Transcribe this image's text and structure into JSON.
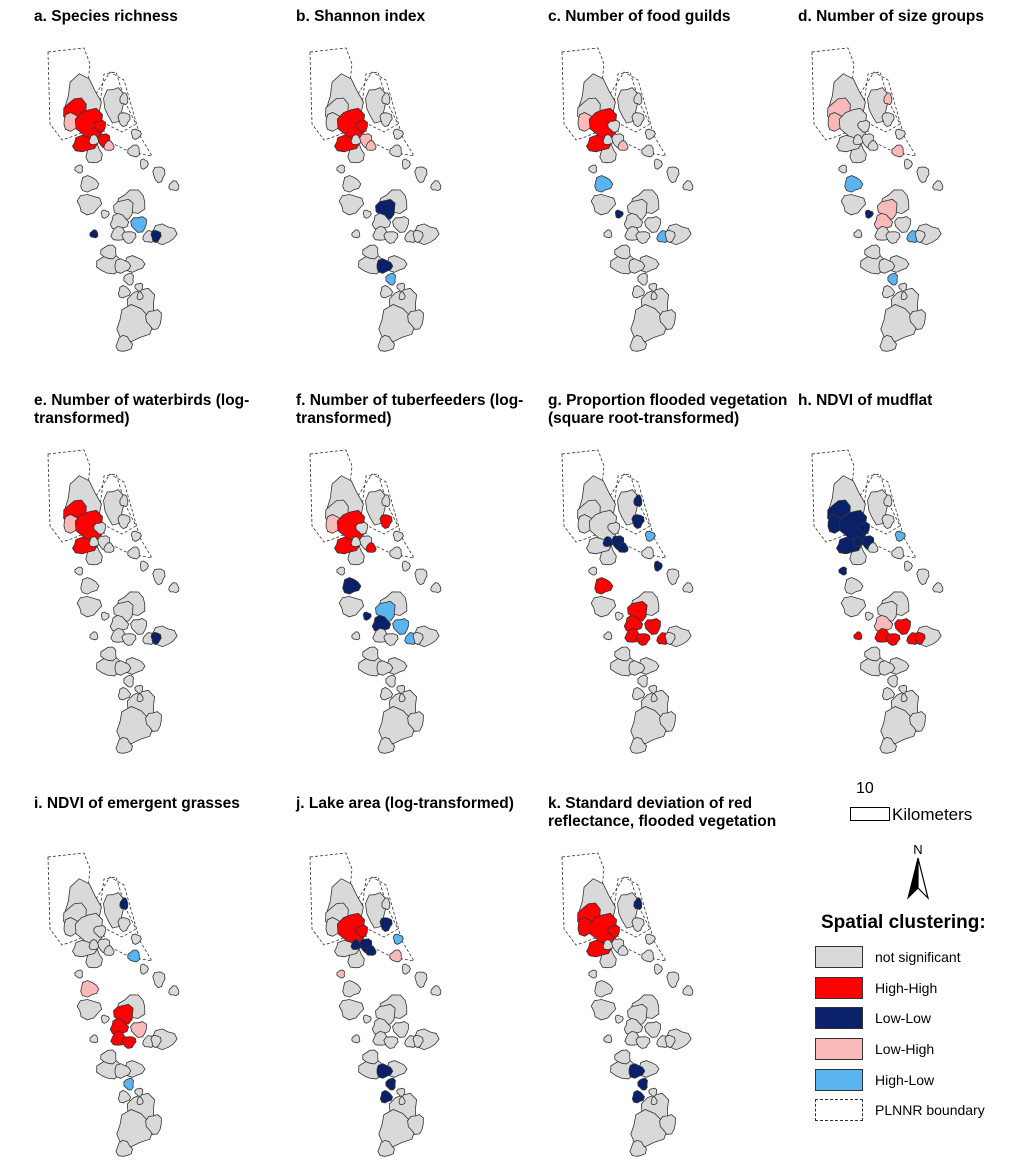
{
  "panels": [
    {
      "id": "a",
      "title": "a. Species richness",
      "lakes": {
        "0": "HH",
        "1": "LH",
        "2": "HH",
        "3": "HH",
        "4": "HH",
        "6": "HH",
        "7": "LH",
        "17": "HL",
        "21": "LL",
        "22": "LL"
      }
    },
    {
      "id": "b",
      "title": "b. Shannon index",
      "lakes": {
        "2": "HH",
        "3": "HH",
        "4": "HH",
        "6": "LH",
        "7": "LH",
        "15": "LL",
        "25": "LL",
        "26": "HL"
      }
    },
    {
      "id": "c",
      "title": "c. Number of food guilds",
      "lakes": {
        "1": "LH",
        "2": "HH",
        "3": "HH",
        "7": "LH",
        "14": "HL",
        "20": "HL",
        "23": "LL"
      }
    },
    {
      "id": "d",
      "title": "d. Number of size groups",
      "lakes": {
        "0": "LH",
        "1": "LH",
        "9": "LH",
        "11": "LH",
        "15": "LH",
        "16": "LH",
        "14": "HL",
        "20": "HL",
        "23": "LL",
        "26": "HL"
      }
    },
    {
      "id": "e",
      "title": "e. Number of waterbirds (log-transformed)",
      "lakes": {
        "0": "HH",
        "1": "LH",
        "2": "HH",
        "3": "HH",
        "21": "LL"
      }
    },
    {
      "id": "f",
      "title": "f. Number of tuberfeeders (log-transformed)",
      "lakes": {
        "1": "LH",
        "2": "HH",
        "3": "HH",
        "8": "HH",
        "7": "HH",
        "14": "LL",
        "23": "LL",
        "15": "HL",
        "16": "LL",
        "17": "HL",
        "20": "HL"
      }
    },
    {
      "id": "g",
      "title": "g. Proportion flooded vegetation (square root-transformed)",
      "lakes": {
        "5": "LL",
        "6": "LL",
        "8": "LL",
        "9": "LL",
        "10": "HL",
        "7": "LL",
        "12": "LL",
        "14": "HH",
        "15": "HH",
        "16": "HH",
        "17": "HH",
        "18": "HH",
        "19": "HH",
        "20": "HH"
      }
    },
    {
      "id": "h",
      "title": "h. NDVI of mudflat",
      "lakes": {
        "0": "LL",
        "1": "LL",
        "2": "LL",
        "3": "LL",
        "4": "LL",
        "5": "LL",
        "6": "LL",
        "10": "HL",
        "13": "LL",
        "16": "LH",
        "17": "HH",
        "18": "HH",
        "19": "HH",
        "20": "HH",
        "21": "HH",
        "22": "HH"
      }
    },
    {
      "id": "i",
      "title": "i. NDVI of emergent grasses",
      "lakes": {
        "9": "LL",
        "11": "HL",
        "14": "LH",
        "15": "HH",
        "16": "HH",
        "17": "LH",
        "18": "HH",
        "19": "HH",
        "26": "HL"
      }
    },
    {
      "id": "j",
      "title": "j. Lake area (log-transformed)",
      "lakes": {
        "2": "HH",
        "4": "HH",
        "5": "LL",
        "6": "LL",
        "7": "LL",
        "8": "LL",
        "10": "HL",
        "13": "LH",
        "11": "LH",
        "25": "LL",
        "26": "LL",
        "27": "LL"
      }
    },
    {
      "id": "k",
      "title": "k. Standard deviation of red reflectance, flooded vegetation",
      "lakes": {
        "0": "HH",
        "1": "HH",
        "2": "HH",
        "3": "HH",
        "4": "HH",
        "9": "LL",
        "25": "LL",
        "26": "LL",
        "27": "LL"
      }
    }
  ],
  "scale": {
    "value": "10",
    "unit": "Kilometers"
  },
  "north": {
    "label": "N",
    "icon": "north-arrow-icon"
  },
  "legend": {
    "title": "Spatial clustering:",
    "items": [
      {
        "key": "NS",
        "label": "not significant",
        "color": "#d9d9d9"
      },
      {
        "key": "HH",
        "label": "High-High",
        "color": "#ff0000"
      },
      {
        "key": "LL",
        "label": "Low-Low",
        "color": "#0a2169"
      },
      {
        "key": "LH",
        "label": "Low-High",
        "color": "#f8b9b9"
      },
      {
        "key": "HL",
        "label": "High-Low",
        "color": "#5ab4f0"
      },
      {
        "key": "boundary",
        "label": "PLNNR boundary",
        "color": "#333333"
      }
    ]
  }
}
